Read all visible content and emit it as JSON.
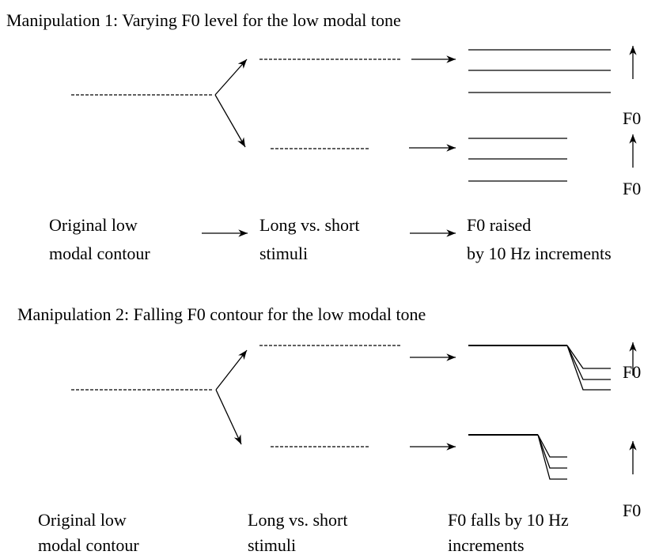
{
  "panels": [
    {
      "title": "Manipulation 1: Varying F0 level for the low modal tone",
      "f0_labels": [
        "F0",
        "F0"
      ],
      "captions": [
        [
          "Original low",
          "modal contour"
        ],
        [
          "Long vs. short",
          "stimuli"
        ],
        [
          "F0 raised",
          "by 10 Hz increments"
        ]
      ]
    },
    {
      "title": "Manipulation 2: Falling F0 contour for the low modal tone",
      "f0_labels": [
        "F0",
        "F0"
      ],
      "captions": [
        [
          "Original low",
          "modal contour"
        ],
        [
          "Long vs. short",
          "stimuli"
        ],
        [
          "F0 falls by 10 Hz",
          "increments"
        ]
      ]
    }
  ]
}
